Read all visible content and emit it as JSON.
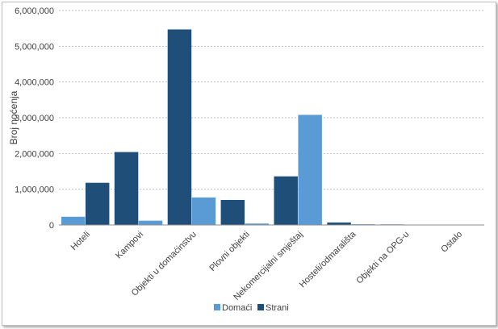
{
  "chart_data": {
    "type": "bar",
    "title": "",
    "xlabel": "",
    "ylabel": "Broj noćenja",
    "ylim": [
      0,
      6000000
    ],
    "ytick_step": 1000000,
    "grid": true,
    "legend_position": "bottom",
    "categories": [
      "Hoteli",
      "Kampovi",
      "Objekti u domaćinstvu",
      "Plovni objekti",
      "Nekomercijalni smještaj",
      "Hosteli/odmarališta",
      "Objekti na OPG-u",
      "Ostalo"
    ],
    "series": [
      {
        "name": "Domaći",
        "color": "#5b9bd5",
        "values": [
          230000,
          120000,
          770000,
          40000,
          3080000,
          20000,
          10000,
          5000
        ]
      },
      {
        "name": "Strani",
        "color": "#1f4e79",
        "values": [
          1180000,
          2040000,
          5470000,
          700000,
          1360000,
          70000,
          15000,
          10000
        ]
      }
    ],
    "series_order_per_category": [
      [
        "Domaći",
        "Strani"
      ],
      [
        "Strani",
        "Domaći"
      ],
      [
        "Strani",
        "Domaći"
      ],
      [
        "Strani",
        "Domaći"
      ],
      [
        "Strani",
        "Domaći"
      ],
      [
        "Strani",
        "Domaći"
      ],
      [
        "Strani",
        "Domaći"
      ],
      [
        "Strani",
        "Domaći"
      ]
    ]
  }
}
